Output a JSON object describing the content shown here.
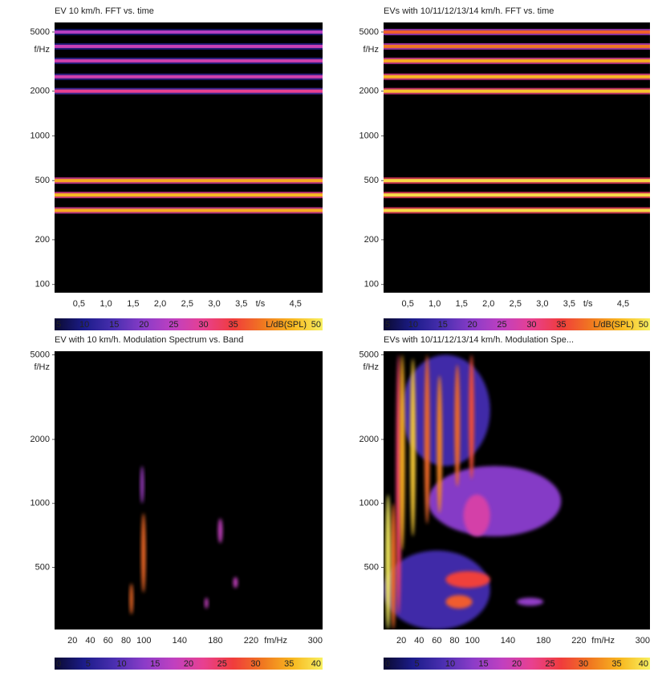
{
  "chart_data": [
    {
      "type": "spectrogram",
      "title": "EV 10 km/h. FFT vs. time",
      "y_label": "f/Hz",
      "x_label": "t/s",
      "log_y": true,
      "ylim": [
        88,
        5800
      ],
      "yticks": [
        100,
        200,
        500,
        1000,
        2000,
        5000
      ],
      "xlim": [
        0.05,
        5
      ],
      "xticks": [
        {
          "value": 0.5,
          "label": "0,5"
        },
        {
          "value": 1,
          "label": "1,0"
        },
        {
          "value": 1.5,
          "label": "1,5"
        },
        {
          "value": 2,
          "label": "2,0"
        },
        {
          "value": 2.5,
          "label": "2,5"
        },
        {
          "value": 3,
          "label": "3,0"
        },
        {
          "value": 3.5,
          "label": "3,5"
        },
        {
          "value": 4.5,
          "label": "4,5"
        }
      ],
      "colorbar_label": "L/dB(SPL)",
      "clim": [
        5,
        50
      ],
      "cticks": [
        5,
        10,
        15,
        20,
        25,
        30,
        35,
        50
      ],
      "colormap": [
        "#0a0a30",
        "#1c1c8a",
        "#4a2fb0",
        "#8a3cc8",
        "#c040c0",
        "#e84090",
        "#f03c3c",
        "#f07820",
        "#f8b820",
        "#f8f060"
      ],
      "lines": [
        {
          "f": 5000,
          "level": 24
        },
        {
          "f": 4000,
          "level": 26
        },
        {
          "f": 3200,
          "level": 27
        },
        {
          "f": 2500,
          "level": 27
        },
        {
          "f": 2000,
          "level": 30
        },
        {
          "f": 500,
          "level": 44
        },
        {
          "f": 400,
          "level": 45
        },
        {
          "f": 315,
          "level": 44
        }
      ]
    },
    {
      "type": "spectrogram",
      "title": "EVs with 10/11/12/13/14 km/h. FFT vs. time",
      "y_label": "f/Hz",
      "x_label": "t/s",
      "log_y": true,
      "ylim": [
        88,
        5800
      ],
      "yticks": [
        100,
        200,
        500,
        1000,
        2000,
        5000
      ],
      "xlim": [
        0.05,
        5
      ],
      "xticks": [
        {
          "value": 0.5,
          "label": "0,5"
        },
        {
          "value": 1,
          "label": "1,0"
        },
        {
          "value": 1.5,
          "label": "1,5"
        },
        {
          "value": 2,
          "label": "2,0"
        },
        {
          "value": 2.5,
          "label": "2,5"
        },
        {
          "value": 3,
          "label": "3,0"
        },
        {
          "value": 3.5,
          "label": "3,5"
        },
        {
          "value": 4.5,
          "label": "4,5"
        }
      ],
      "colorbar_label": "L/dB(SPL)",
      "clim": [
        5,
        50
      ],
      "cticks": [
        5,
        10,
        15,
        20,
        25,
        30,
        35,
        50
      ],
      "colormap": [
        "#0a0a30",
        "#1c1c8a",
        "#4a2fb0",
        "#8a3cc8",
        "#c040c0",
        "#e84090",
        "#f03c3c",
        "#f07820",
        "#f8b820",
        "#f8f060"
      ],
      "lines": [
        {
          "f": 5000,
          "level": 38
        },
        {
          "f": 4000,
          "level": 40
        },
        {
          "f": 3200,
          "level": 44
        },
        {
          "f": 2500,
          "level": 45
        },
        {
          "f": 2000,
          "level": 46
        },
        {
          "f": 500,
          "level": 48
        },
        {
          "f": 400,
          "level": 48
        },
        {
          "f": 315,
          "level": 48
        }
      ]
    },
    {
      "type": "modulation",
      "title": "EV with 10 km/h. Modulation Spectrum vs. Band",
      "y_label": "f/Hz",
      "x_label": "fm/Hz",
      "log_y": true,
      "ylim": [
        255,
        5200
      ],
      "yticks": [
        500,
        1000,
        2000,
        5000
      ],
      "xlim": [
        0,
        300
      ],
      "xticks": [
        20,
        40,
        60,
        80,
        100,
        140,
        180,
        220,
        300
      ],
      "clim": [
        0,
        40
      ],
      "cticks": [
        0,
        5,
        10,
        15,
        20,
        25,
        30,
        35,
        40
      ],
      "colormap": [
        "#0a0a30",
        "#1c1c8a",
        "#4a2fb0",
        "#8a3cc8",
        "#c040c0",
        "#e84090",
        "#f03c3c",
        "#f07820",
        "#f8b820",
        "#f8f060"
      ],
      "blobs": [
        {
          "fm": [
            84,
            88
          ],
          "f": [
            300,
            420
          ],
          "level": 30
        },
        {
          "fm": [
            97,
            102
          ],
          "f": [
            380,
            900
          ],
          "level": 30
        },
        {
          "fm": [
            96,
            100
          ],
          "f": [
            1000,
            1500
          ],
          "level": 15
        },
        {
          "fm": [
            168,
            172
          ],
          "f": [
            320,
            360
          ],
          "level": 18
        },
        {
          "fm": [
            183,
            188
          ],
          "f": [
            650,
            850
          ],
          "level": 18
        },
        {
          "fm": [
            200,
            205
          ],
          "f": [
            400,
            450
          ],
          "level": 18
        }
      ]
    },
    {
      "type": "modulation",
      "title": "EVs with 10/11/12/13/14 km/h. Modulation Spe...",
      "y_label": "f/Hz",
      "x_label": "fm/Hz",
      "log_y": true,
      "ylim": [
        255,
        5200
      ],
      "yticks": [
        500,
        1000,
        2000,
        5000
      ],
      "xlim": [
        0,
        300
      ],
      "xticks": [
        20,
        40,
        60,
        80,
        100,
        140,
        180,
        220,
        300
      ],
      "clim": [
        0,
        40
      ],
      "cticks": [
        0,
        5,
        10,
        15,
        20,
        25,
        30,
        35,
        40
      ],
      "colormap": [
        "#0a0a30",
        "#1c1c8a",
        "#4a2fb0",
        "#8a3cc8",
        "#c040c0",
        "#e84090",
        "#f03c3c",
        "#f07820",
        "#f8b820",
        "#f8f060"
      ],
      "blobs": [
        {
          "fm": [
            20,
            120
          ],
          "f": [
            1500,
            5000
          ],
          "level": 8
        },
        {
          "fm": [
            0,
            120
          ],
          "f": [
            255,
            600
          ],
          "level": 8
        },
        {
          "fm": [
            50,
            200
          ],
          "f": [
            700,
            1500
          ],
          "level": 13
        },
        {
          "fm": [
            90,
            120
          ],
          "f": [
            700,
            1100
          ],
          "level": 20
        },
        {
          "fm": [
            70,
            120
          ],
          "f": [
            400,
            480
          ],
          "level": 27
        },
        {
          "fm": [
            70,
            100
          ],
          "f": [
            320,
            370
          ],
          "level": 29
        },
        {
          "fm": [
            150,
            180
          ],
          "f": [
            330,
            360
          ],
          "level": 14
        },
        {
          "fm": [
            14,
            20
          ],
          "f": [
            300,
            5000
          ],
          "level": 24
        },
        {
          "fm": [
            8,
            14
          ],
          "f": [
            255,
            1000
          ],
          "level": 30
        },
        {
          "fm": [
            2,
            8
          ],
          "f": [
            255,
            1100
          ],
          "level": 40
        },
        {
          "fm": [
            18,
            24
          ],
          "f": [
            600,
            5000
          ],
          "level": 35
        },
        {
          "fm": [
            30,
            36
          ],
          "f": [
            700,
            4800
          ],
          "level": 37
        },
        {
          "fm": [
            46,
            52
          ],
          "f": [
            800,
            5000
          ],
          "level": 30
        },
        {
          "fm": [
            60,
            66
          ],
          "f": [
            900,
            4000
          ],
          "level": 32
        },
        {
          "fm": [
            80,
            86
          ],
          "f": [
            1200,
            4500
          ],
          "level": 30
        },
        {
          "fm": [
            96,
            102
          ],
          "f": [
            1300,
            5000
          ],
          "level": 28
        }
      ]
    }
  ]
}
